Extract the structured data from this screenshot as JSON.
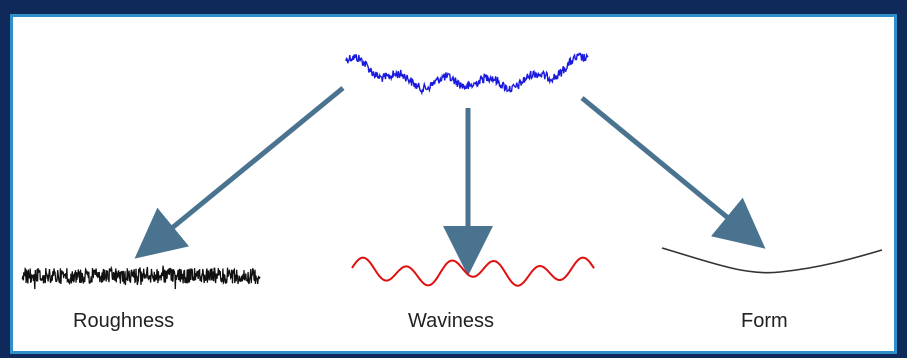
{
  "labels": {
    "roughness": "Roughness",
    "waviness": "Waviness",
    "form": "Form"
  },
  "colors": {
    "background": "#0f2a5a",
    "panel_border": "#2f8fc8",
    "profile": "#1a1adf",
    "roughness": "#111111",
    "waviness": "#e01010",
    "form": "#333333",
    "arrow": "#4a7390"
  }
}
